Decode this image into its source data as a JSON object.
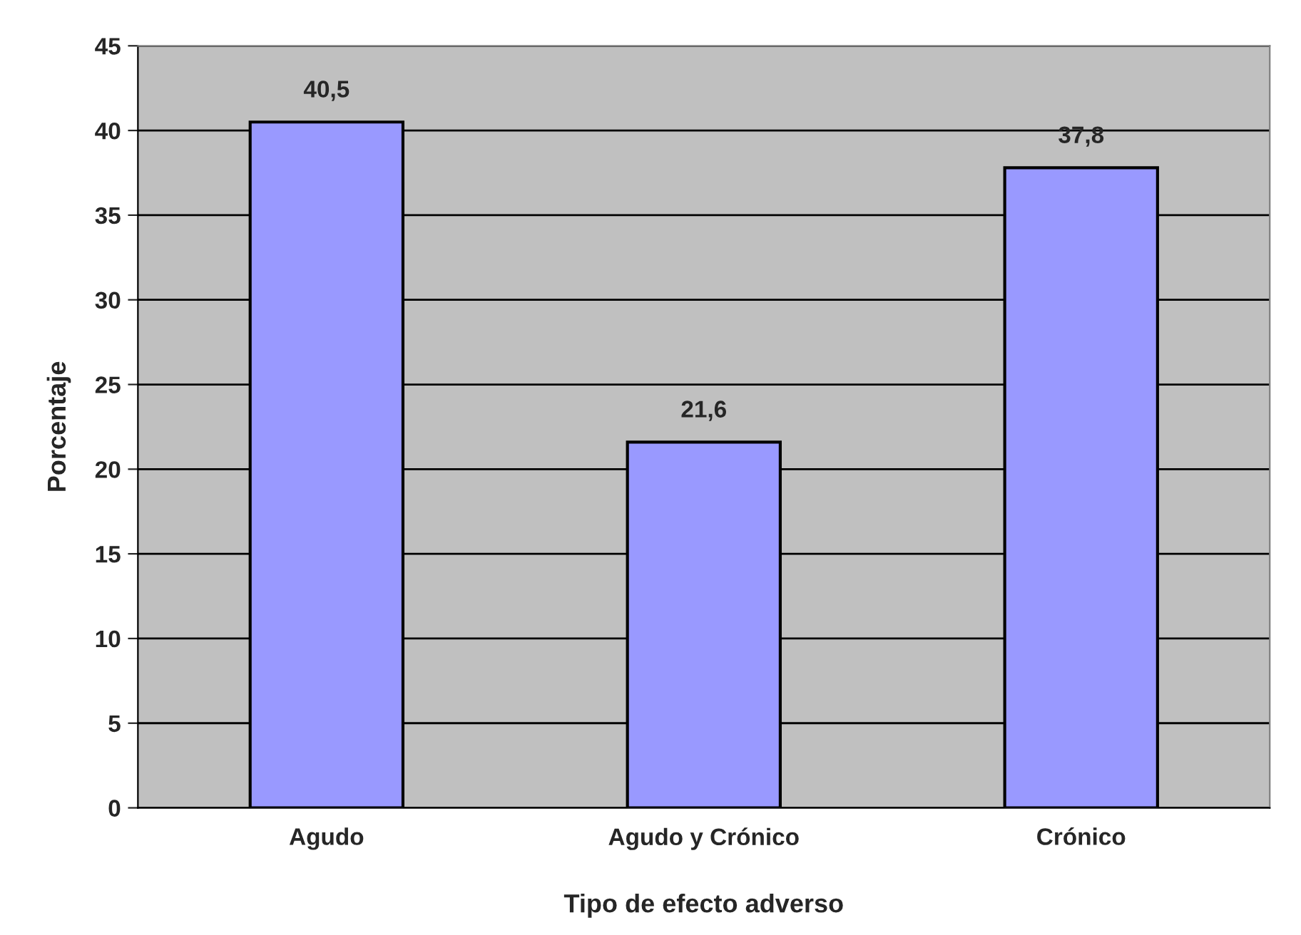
{
  "chart_data": {
    "type": "bar",
    "xlabel": "Tipo de efecto adverso",
    "ylabel": "Porcentaje",
    "categories": [
      "Agudo",
      "Agudo y Crónico",
      "Crónico"
    ],
    "values": [
      40.5,
      21.6,
      37.8
    ],
    "value_labels": [
      "40,5",
      "21,6",
      "37,8"
    ],
    "color": "#9999ff",
    "ylim": [
      0,
      45
    ],
    "yticks": [
      0,
      5,
      10,
      15,
      20,
      25,
      30,
      35,
      40,
      45
    ],
    "grid": "y",
    "legend": false
  }
}
